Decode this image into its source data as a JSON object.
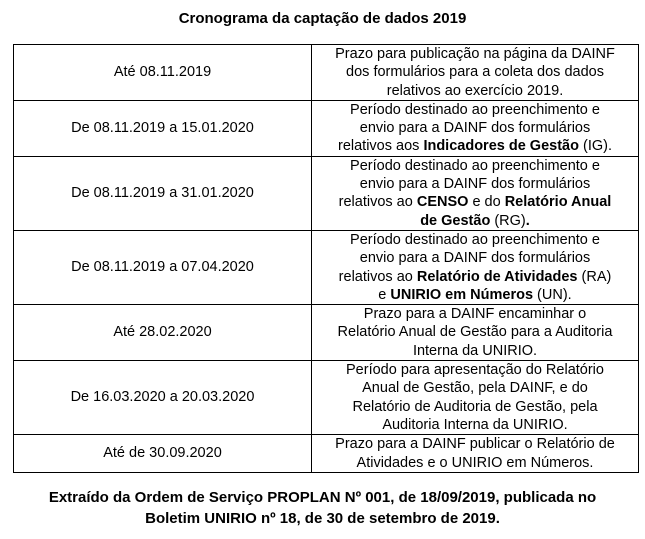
{
  "title": "Cronograma da captação de dados 2019",
  "rows": [
    {
      "date": "Até 08.11.2019",
      "lines": [
        [
          {
            "t": "Prazo para publicação na página da DAINF"
          }
        ],
        [
          {
            "t": "dos formulários para a coleta dos dados"
          }
        ],
        [
          {
            "t": "relativos ao exercício 2019."
          }
        ]
      ]
    },
    {
      "date": "De 08.11.2019 a 15.01.2020",
      "lines": [
        [
          {
            "t": "Período destinado ao preenchimento e"
          }
        ],
        [
          {
            "t": "envio para a DAINF dos formulários"
          }
        ],
        [
          {
            "t": "relativos aos "
          },
          {
            "t": "Indicadores de Gestão",
            "b": true
          },
          {
            "t": " (IG)."
          }
        ]
      ]
    },
    {
      "date": "De 08.11.2019 a 31.01.2020",
      "lines": [
        [
          {
            "t": "Período destinado ao preenchimento e"
          }
        ],
        [
          {
            "t": "envio para a DAINF dos formulários"
          }
        ],
        [
          {
            "t": "relativos ao "
          },
          {
            "t": "CENSO",
            "b": true
          },
          {
            "t": " e do "
          },
          {
            "t": "Relatório Anual",
            "b": true
          }
        ],
        [
          {
            "t": "de Gestão",
            "b": true
          },
          {
            "t": " (RG)"
          },
          {
            "t": ".",
            "b": true
          }
        ]
      ]
    },
    {
      "date": "De 08.11.2019 a 07.04.2020",
      "lines": [
        [
          {
            "t": "Período destinado ao preenchimento e"
          }
        ],
        [
          {
            "t": "envio para a DAINF dos formulários"
          }
        ],
        [
          {
            "t": "relativos ao "
          },
          {
            "t": "Relatório de Atividades",
            "b": true
          },
          {
            "t": " (RA)"
          }
        ],
        [
          {
            "t": "e "
          },
          {
            "t": "UNIRIO em Números",
            "b": true
          },
          {
            "t": " (UN)."
          }
        ]
      ]
    },
    {
      "date": "Até 28.02.2020",
      "lines": [
        [
          {
            "t": "Prazo para a DAINF encaminhar o"
          }
        ],
        [
          {
            "t": "Relatório Anual de Gestão para a Auditoria"
          }
        ],
        [
          {
            "t": "Interna da UNIRIO."
          }
        ]
      ]
    },
    {
      "date": "De 16.03.2020 a 20.03.2020",
      "lines": [
        [
          {
            "t": "Período para apresentação do Relatório"
          }
        ],
        [
          {
            "t": "Anual de Gestão, pela DAINF, e do"
          }
        ],
        [
          {
            "t": "Relatório de Auditoria de Gestão, pela"
          }
        ],
        [
          {
            "t": "Auditoria Interna da UNIRIO."
          }
        ]
      ]
    },
    {
      "date": "Até de 30.09.2020",
      "lines": [
        [
          {
            "t": "Prazo para a DAINF publicar o Relatório de"
          }
        ],
        [
          {
            "t": "Atividades e o UNIRIO em Números."
          }
        ]
      ]
    }
  ],
  "footer": {
    "line1": "Extraído da Ordem de Serviço PROPLAN Nº 001, de 18/09/2019, publicada no",
    "line2": "Boletim UNIRIO nº 18, de 30 de setembro de 2019."
  }
}
